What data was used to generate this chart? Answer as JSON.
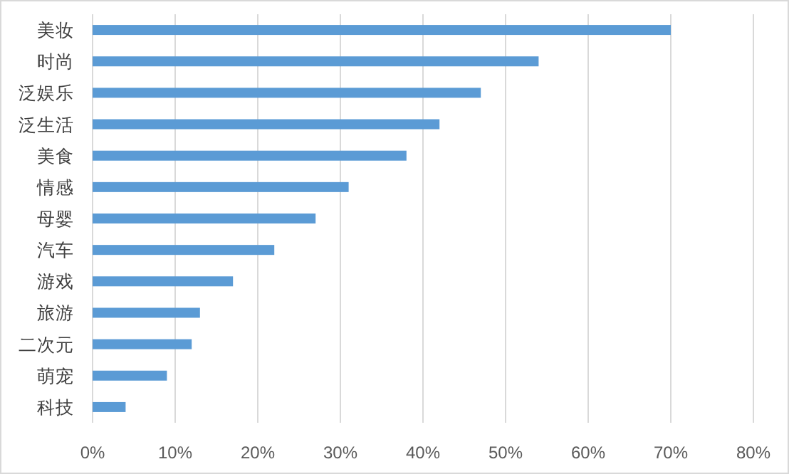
{
  "chart_data": {
    "type": "bar",
    "orientation": "horizontal",
    "categories": [
      "美妆",
      "时尚",
      "泛娱乐",
      "泛生活",
      "美食",
      "情感",
      "母婴",
      "汽车",
      "游戏",
      "旅游",
      "二次元",
      "萌宠",
      "科技"
    ],
    "values": [
      70,
      54,
      47,
      42,
      38,
      31,
      27,
      22,
      17,
      13,
      12,
      9,
      4
    ],
    "color": "#5b9bd5",
    "xlim": [
      0,
      80
    ],
    "xticks": [
      {
        "value": 0,
        "label": "0%"
      },
      {
        "value": 10,
        "label": "10%"
      },
      {
        "value": 20,
        "label": "20%"
      },
      {
        "value": 30,
        "label": "30%"
      },
      {
        "value": 40,
        "label": "40%"
      },
      {
        "value": 50,
        "label": "50%"
      },
      {
        "value": 60,
        "label": "60%"
      },
      {
        "value": 70,
        "label": "70%"
      },
      {
        "value": 80,
        "label": "80%"
      }
    ],
    "grid": "x"
  }
}
